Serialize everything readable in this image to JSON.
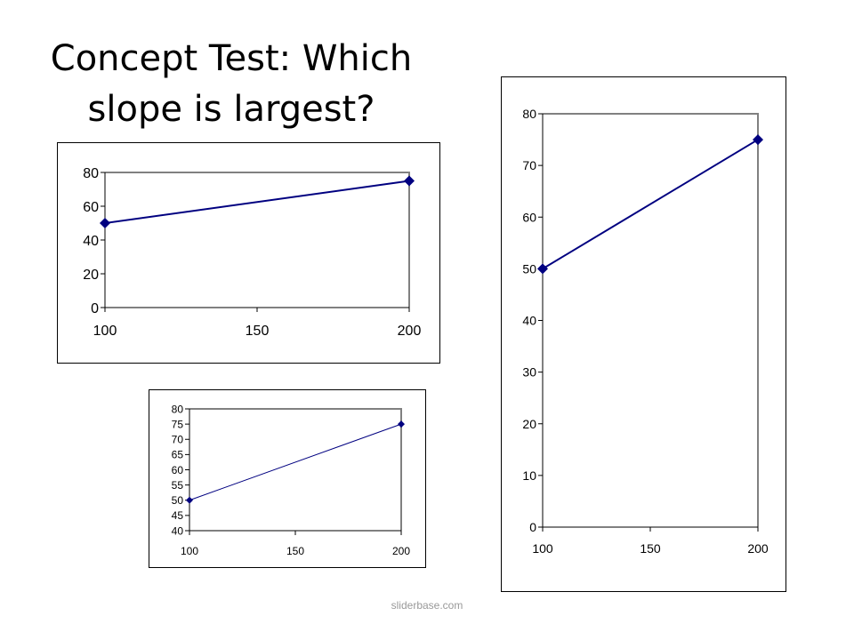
{
  "title_lines": [
    "Concept Test: Which",
    "slope is largest?"
  ],
  "footer": "sliderbase.com",
  "chart_data": [
    {
      "type": "line",
      "title": "",
      "xlabel": "",
      "ylabel": "",
      "x": [
        100,
        200
      ],
      "y": [
        50,
        75
      ],
      "xticks": [
        100,
        150,
        200
      ],
      "yticks": [
        0,
        20,
        40,
        60,
        80
      ],
      "xlim": [
        100,
        200
      ],
      "ylim": [
        0,
        80
      ],
      "grid": false,
      "color": "#000080",
      "marker": "diamond"
    },
    {
      "type": "line",
      "title": "",
      "xlabel": "",
      "ylabel": "",
      "x": [
        100,
        200
      ],
      "y": [
        50,
        75
      ],
      "xticks": [
        100,
        150,
        200
      ],
      "yticks": [
        40,
        45,
        50,
        55,
        60,
        65,
        70,
        75,
        80
      ],
      "xlim": [
        100,
        200
      ],
      "ylim": [
        40,
        80
      ],
      "grid": false,
      "color": "#000080",
      "marker": "diamond"
    },
    {
      "type": "line",
      "title": "",
      "xlabel": "",
      "ylabel": "",
      "x": [
        100,
        200
      ],
      "y": [
        50,
        75
      ],
      "xticks": [
        100,
        150,
        200
      ],
      "yticks": [
        0,
        10,
        20,
        30,
        40,
        50,
        60,
        70,
        80
      ],
      "xlim": [
        100,
        200
      ],
      "ylim": [
        0,
        80
      ],
      "grid": false,
      "color": "#000080",
      "marker": "diamond"
    }
  ]
}
